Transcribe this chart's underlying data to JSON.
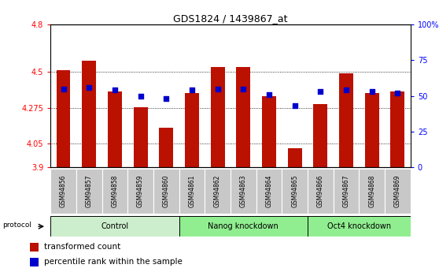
{
  "title": "GDS1824 / 1439867_at",
  "samples": [
    "GSM94856",
    "GSM94857",
    "GSM94858",
    "GSM94859",
    "GSM94860",
    "GSM94861",
    "GSM94862",
    "GSM94863",
    "GSM94864",
    "GSM94865",
    "GSM94866",
    "GSM94867",
    "GSM94868",
    "GSM94869"
  ],
  "transformed_count": [
    4.51,
    4.57,
    4.38,
    4.28,
    4.15,
    4.37,
    4.53,
    4.53,
    4.35,
    4.02,
    4.3,
    4.49,
    4.37,
    4.38
  ],
  "percentile_rank": [
    55,
    56,
    54,
    50,
    48,
    54,
    55,
    55,
    51,
    43,
    53,
    54,
    53,
    52
  ],
  "groups": [
    {
      "label": "Control",
      "start": 0,
      "end": 5
    },
    {
      "label": "Nanog knockdown",
      "start": 5,
      "end": 10
    },
    {
      "label": "Oct4 knockdown",
      "start": 10,
      "end": 14
    }
  ],
  "group_colors": [
    "#cceecc",
    "#90ee90",
    "#90ee90"
  ],
  "ylim_left": [
    3.9,
    4.8
  ],
  "ylim_right": [
    0,
    100
  ],
  "yticks_left": [
    3.9,
    4.05,
    4.275,
    4.5,
    4.8
  ],
  "ytick_labels_left": [
    "3.9",
    "4.05",
    "4.275",
    "4.5",
    "4.8"
  ],
  "yticks_right": [
    0,
    25,
    50,
    75,
    100
  ],
  "ytick_labels_right": [
    "0",
    "25",
    "50",
    "75",
    "100%"
  ],
  "bar_color": "#bb1100",
  "dot_color": "#0000cc",
  "bar_width": 0.55,
  "legend_items": [
    "transformed count",
    "percentile rank within the sample"
  ]
}
